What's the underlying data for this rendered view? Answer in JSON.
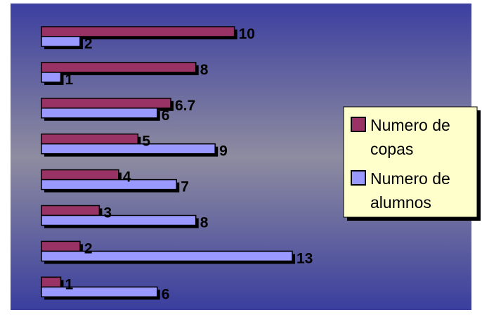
{
  "chart_data": {
    "type": "bar",
    "orientation": "horizontal",
    "categories": [
      "",
      "",
      "",
      "",
      "",
      "",
      "",
      ""
    ],
    "series": [
      {
        "name": "Numero de copas",
        "values": [
          10,
          8,
          6.7,
          5,
          4,
          3,
          2,
          1
        ],
        "labels": [
          "10",
          "8",
          "6.7",
          "5",
          "4",
          "3",
          "2",
          "1"
        ]
      },
      {
        "name": "Numero de alumnos",
        "values": [
          2,
          1,
          6,
          9,
          7,
          8,
          13,
          6
        ],
        "labels": [
          "2",
          "1",
          "6",
          "9",
          "7",
          "8",
          "13",
          "6"
        ]
      }
    ],
    "xlim": [
      0,
      13
    ],
    "grid": false,
    "legend_position": "right",
    "title": "",
    "xlabel": "",
    "ylabel": ""
  },
  "legend": {
    "items": [
      {
        "line1": "Numero de",
        "line2": "copas"
      },
      {
        "line1": "Numero de",
        "line2": "alumnos"
      }
    ]
  },
  "colors": {
    "copas": "#993366",
    "alumnos": "#9999ff",
    "legend_bg": "#ffffcc",
    "plot_top": "#3c3fa0",
    "plot_middle": "#8e8ca0",
    "plot_bottom": "#3a3e9e"
  }
}
